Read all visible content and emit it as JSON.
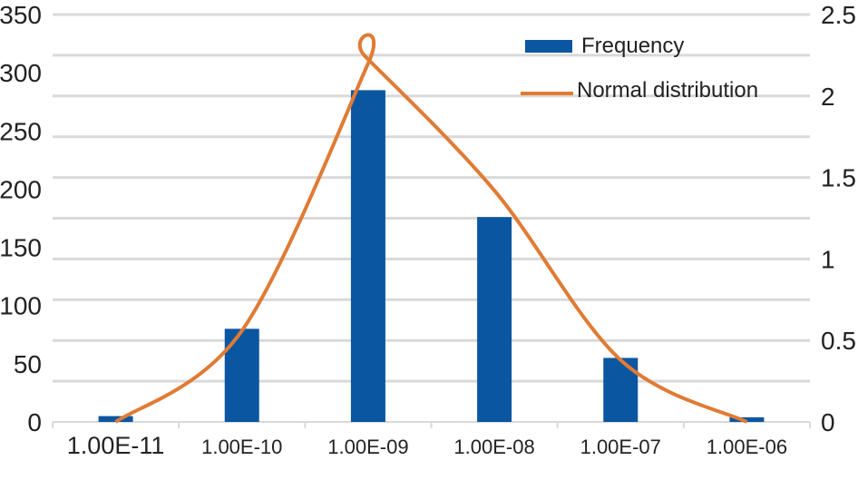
{
  "chart_data": {
    "type": "bar",
    "categories": [
      "1.00E-11",
      "1.00E-10",
      "1.00E-09",
      "1.00E-08",
      "1.00E-07",
      "1.00E-06"
    ],
    "series": [
      {
        "name": "Frequency",
        "type": "bar",
        "axis": "left",
        "color": "#0b56a0",
        "values": [
          5,
          80,
          285,
          176,
          55,
          4
        ]
      },
      {
        "name": "Normal distribution",
        "type": "line",
        "axis": "right",
        "color": "#e07b34",
        "values": [
          0,
          0.56,
          2.2,
          1.42,
          0.38,
          0
        ],
        "peak_x": 1.98,
        "peak_value": 2.24
      }
    ],
    "y_left": {
      "ylim": [
        0,
        350
      ],
      "ticks": [
        "0",
        "50",
        "100",
        "150",
        "200",
        "250",
        "300",
        "350"
      ]
    },
    "y_right": {
      "ylim": [
        0,
        2.5
      ],
      "ticks": [
        "0",
        "0.5",
        "1",
        "1.5",
        "2",
        "2.5"
      ]
    },
    "grid": true,
    "legend": {
      "position": "top-right",
      "entries": [
        "Frequency",
        "Normal distribution"
      ]
    },
    "title": "",
    "xlabel": "",
    "ylabel": ""
  }
}
